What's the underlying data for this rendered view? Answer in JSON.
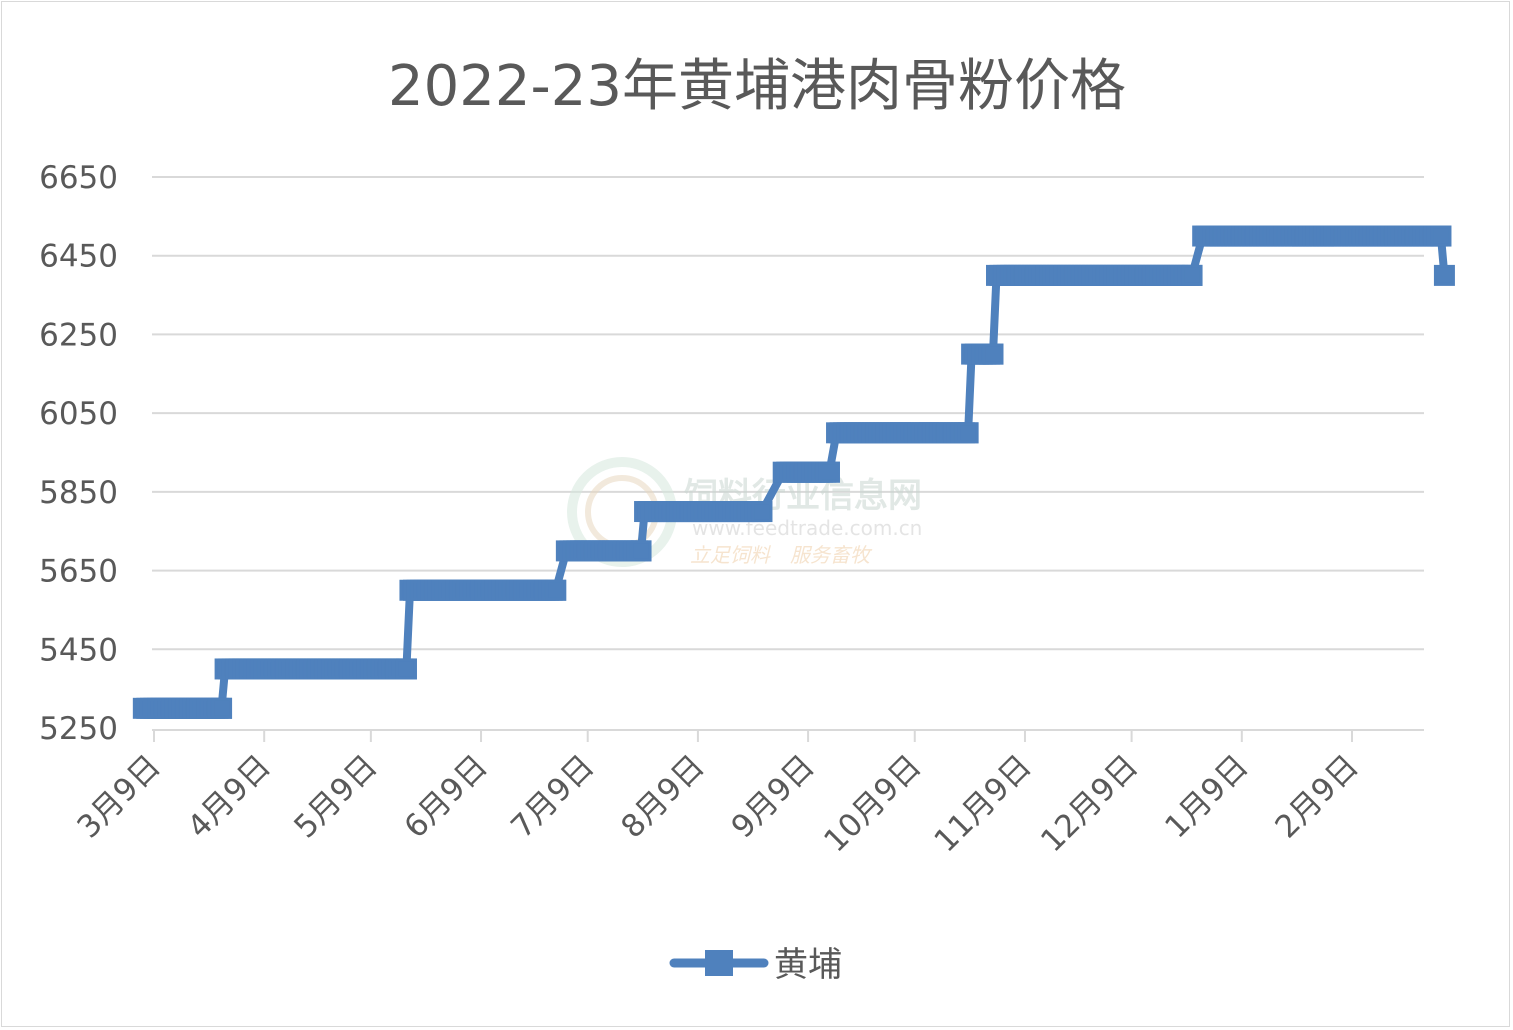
{
  "chart_data": {
    "type": "line",
    "title": "2022-23年黄埔港肉骨粉价格",
    "xlabel": "",
    "ylabel": "",
    "ylim": [
      5250,
      6650
    ],
    "y_ticks": [
      5250,
      5450,
      5650,
      5850,
      6050,
      6250,
      6450,
      6650
    ],
    "categories": [
      "3月9日",
      "4月9日",
      "5月9日",
      "6月9日",
      "7月9日",
      "8月9日",
      "9月9日",
      "10月9日",
      "11月9日",
      "12月9日",
      "1月9日",
      "2月9日"
    ],
    "legend_position": "bottom",
    "grid": true,
    "series": [
      {
        "name": "黄埔",
        "color": "#4f81bd",
        "points": [
          {
            "date": "2022-03-06",
            "value": 5300
          },
          {
            "date": "2022-03-28",
            "value": 5300
          },
          {
            "date": "2022-03-29",
            "value": 5400
          },
          {
            "date": "2022-05-19",
            "value": 5400
          },
          {
            "date": "2022-05-20",
            "value": 5600
          },
          {
            "date": "2022-06-30",
            "value": 5600
          },
          {
            "date": "2022-07-03",
            "value": 5700
          },
          {
            "date": "2022-07-24",
            "value": 5700
          },
          {
            "date": "2022-07-25",
            "value": 5800
          },
          {
            "date": "2022-08-27",
            "value": 5800
          },
          {
            "date": "2022-09-02",
            "value": 5900
          },
          {
            "date": "2022-09-15",
            "value": 5900
          },
          {
            "date": "2022-09-17",
            "value": 6000
          },
          {
            "date": "2022-10-05",
            "value": 6000
          },
          {
            "date": "2022-10-13",
            "value": 6000
          },
          {
            "date": "2022-10-24",
            "value": 6000
          },
          {
            "date": "2022-10-25",
            "value": 6200
          },
          {
            "date": "2022-10-31",
            "value": 6200
          },
          {
            "date": "2022-11-01",
            "value": 6400
          },
          {
            "date": "2022-12-26",
            "value": 6400
          },
          {
            "date": "2022-12-29",
            "value": 6500
          },
          {
            "date": "2023-01-26",
            "value": 6500
          },
          {
            "date": "2023-02-01",
            "value": 6500
          },
          {
            "date": "2023-03-06",
            "value": 6500
          },
          {
            "date": "2023-03-07",
            "value": 6400
          }
        ]
      }
    ]
  },
  "watermark": {
    "name": "饲料行业信息网",
    "url": "www.feedtrade.com.cn",
    "slogan": "立足饲料　服务畜牧"
  }
}
